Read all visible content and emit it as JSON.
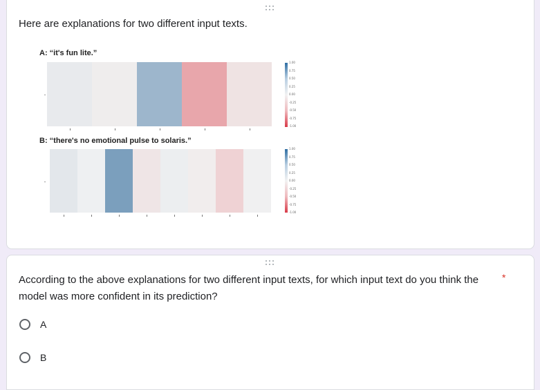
{
  "top_card": {
    "intro": "Here are explanations for two different input texts."
  },
  "heatmap_a": {
    "label": "A: “it's fun lite.”",
    "cells": [
      "#e8eaed",
      "#efeded",
      "#9db6cc",
      "#e8a6ab",
      "#efe3e3"
    ],
    "colorbar_ticks": [
      "1.00",
      "0.75",
      "0.50",
      "0.25",
      "0.00",
      "-0.25",
      "-0.50",
      "-0.75",
      "-1.00"
    ]
  },
  "heatmap_b": {
    "label": "B: “there's no emotional pulse to solaris.”",
    "cells": [
      "#e3e7eb",
      "#eef0f2",
      "#7b9fbd",
      "#efe5e6",
      "#eceef0",
      "#f1eded",
      "#efd2d4",
      "#f0f0f1"
    ],
    "colorbar_ticks": [
      "1.00",
      "0.75",
      "0.50",
      "0.25",
      "0.00",
      "-0.25",
      "-0.50",
      "-0.75",
      "-1.00"
    ]
  },
  "question": {
    "text": "According to the above explanations for two different input texts, for which input text do you think the model was more confident in its prediction?",
    "required_mark": "*",
    "options": [
      {
        "label": "A"
      },
      {
        "label": "B"
      }
    ]
  },
  "colors": {
    "page_background": "#f0ebf8",
    "card_background": "#ffffff",
    "required": "#d93025",
    "colorbar_top": "#2f6ea3",
    "colorbar_bottom": "#d93a48"
  },
  "icons": {
    "drag_handle": "drag-handle-icon",
    "radio_unchecked": "radio-unchecked-icon"
  }
}
